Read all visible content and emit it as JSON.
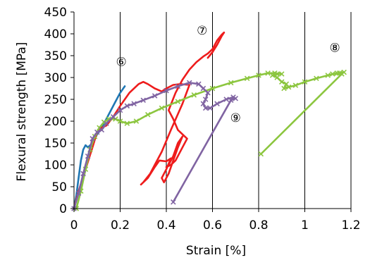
{
  "chart_data": {
    "type": "line",
    "xlabel": "Strain [%]",
    "ylabel": "Flexural strength [MPa]",
    "xlim": [
      0,
      1.2
    ],
    "ylim": [
      0,
      450
    ],
    "x_ticks": [
      0,
      0.2,
      0.4,
      0.6,
      0.8,
      1.0,
      1.2
    ],
    "x_tick_labels": [
      "0",
      "0.2",
      "0.4",
      "0.6",
      "0.8",
      "1",
      "1.2"
    ],
    "y_ticks": [
      0,
      50,
      100,
      150,
      200,
      250,
      300,
      350,
      400,
      450
    ],
    "y_tick_labels": [
      "0",
      "50",
      "100",
      "150",
      "200",
      "250",
      "300",
      "350",
      "400",
      "450"
    ],
    "grid": "vertical",
    "series": [
      {
        "label": "⑥",
        "color": "#1f77b4",
        "marker": "none",
        "points": [
          [
            0.0,
            0
          ],
          [
            0.01,
            30
          ],
          [
            0.02,
            70
          ],
          [
            0.03,
            110
          ],
          [
            0.04,
            135
          ],
          [
            0.05,
            145
          ],
          [
            0.06,
            140
          ],
          [
            0.08,
            150
          ],
          [
            0.1,
            170
          ],
          [
            0.12,
            185
          ],
          [
            0.14,
            205
          ],
          [
            0.16,
            225
          ],
          [
            0.18,
            245
          ],
          [
            0.2,
            265
          ],
          [
            0.22,
            280
          ]
        ]
      },
      {
        "label": "⑦",
        "color": "#ee1c1c",
        "marker": "none",
        "points": [
          [
            0.0,
            0
          ],
          [
            0.02,
            40
          ],
          [
            0.05,
            90
          ],
          [
            0.08,
            140
          ],
          [
            0.1,
            175
          ],
          [
            0.12,
            185
          ],
          [
            0.14,
            190
          ],
          [
            0.17,
            210
          ],
          [
            0.2,
            235
          ],
          [
            0.24,
            265
          ],
          [
            0.28,
            285
          ],
          [
            0.3,
            290
          ],
          [
            0.32,
            285
          ],
          [
            0.35,
            275
          ],
          [
            0.38,
            268
          ],
          [
            0.4,
            275
          ],
          [
            0.43,
            283
          ],
          [
            0.46,
            285
          ],
          [
            0.5,
            283
          ],
          [
            0.47,
            240
          ],
          [
            0.42,
            180
          ],
          [
            0.38,
            130
          ],
          [
            0.35,
            100
          ],
          [
            0.33,
            80
          ],
          [
            0.3,
            60
          ],
          [
            0.29,
            55
          ],
          [
            0.32,
            70
          ],
          [
            0.35,
            95
          ],
          [
            0.37,
            110
          ],
          [
            0.4,
            108
          ],
          [
            0.42,
            115
          ],
          [
            0.4,
            90
          ],
          [
            0.38,
            70
          ],
          [
            0.39,
            60
          ],
          [
            0.41,
            80
          ],
          [
            0.43,
            110
          ],
          [
            0.45,
            140
          ],
          [
            0.47,
            165
          ],
          [
            0.45,
            150
          ],
          [
            0.43,
            120
          ],
          [
            0.41,
            100
          ],
          [
            0.4,
            95
          ],
          [
            0.42,
            100
          ],
          [
            0.44,
            110
          ],
          [
            0.47,
            140
          ],
          [
            0.49,
            160
          ],
          [
            0.45,
            180
          ],
          [
            0.43,
            205
          ],
          [
            0.41,
            225
          ],
          [
            0.44,
            265
          ],
          [
            0.47,
            295
          ],
          [
            0.5,
            318
          ],
          [
            0.53,
            335
          ],
          [
            0.56,
            348
          ],
          [
            0.58,
            355
          ],
          [
            0.6,
            365
          ],
          [
            0.62,
            385
          ],
          [
            0.64,
            398
          ],
          [
            0.65,
            403
          ],
          [
            0.64,
            395
          ],
          [
            0.62,
            375
          ],
          [
            0.6,
            358
          ],
          [
            0.58,
            345
          ]
        ]
      },
      {
        "label": "⑧",
        "color": "#8cc63f",
        "marker": "x",
        "points": [
          [
            0.01,
            0
          ],
          [
            0.03,
            40
          ],
          [
            0.05,
            90
          ],
          [
            0.07,
            135
          ],
          [
            0.09,
            165
          ],
          [
            0.11,
            185
          ],
          [
            0.13,
            198
          ],
          [
            0.15,
            205
          ],
          [
            0.18,
            205
          ],
          [
            0.2,
            200
          ],
          [
            0.23,
            195
          ],
          [
            0.27,
            200
          ],
          [
            0.32,
            215
          ],
          [
            0.38,
            230
          ],
          [
            0.45,
            245
          ],
          [
            0.52,
            260
          ],
          [
            0.6,
            275
          ],
          [
            0.68,
            288
          ],
          [
            0.75,
            298
          ],
          [
            0.8,
            305
          ],
          [
            0.84,
            310
          ],
          [
            0.87,
            310
          ],
          [
            0.9,
            308
          ],
          [
            0.88,
            308
          ],
          [
            0.86,
            305
          ],
          [
            0.88,
            300
          ],
          [
            0.9,
            290
          ],
          [
            0.92,
            285
          ],
          [
            0.91,
            275
          ],
          [
            0.93,
            278
          ],
          [
            0.96,
            282
          ],
          [
            1.0,
            290
          ],
          [
            1.05,
            298
          ],
          [
            1.1,
            305
          ],
          [
            1.14,
            310
          ],
          [
            1.17,
            312
          ],
          [
            1.15,
            310
          ],
          [
            1.12,
            308
          ],
          [
            1.16,
            308
          ],
          [
            0.81,
            125
          ]
        ]
      },
      {
        "label": "⑨",
        "color": "#8064a2",
        "marker": "x",
        "points": [
          [
            0.0,
            0
          ],
          [
            0.02,
            35
          ],
          [
            0.04,
            80
          ],
          [
            0.06,
            120
          ],
          [
            0.08,
            160
          ],
          [
            0.1,
            175
          ],
          [
            0.12,
            180
          ],
          [
            0.14,
            195
          ],
          [
            0.17,
            210
          ],
          [
            0.2,
            225
          ],
          [
            0.23,
            235
          ],
          [
            0.26,
            240
          ],
          [
            0.3,
            248
          ],
          [
            0.35,
            258
          ],
          [
            0.4,
            270
          ],
          [
            0.45,
            280
          ],
          [
            0.5,
            288
          ],
          [
            0.54,
            285
          ],
          [
            0.56,
            275
          ],
          [
            0.58,
            265
          ],
          [
            0.57,
            250
          ],
          [
            0.56,
            240
          ],
          [
            0.57,
            230
          ],
          [
            0.59,
            230
          ],
          [
            0.62,
            240
          ],
          [
            0.66,
            250
          ],
          [
            0.69,
            255
          ],
          [
            0.7,
            252
          ],
          [
            0.68,
            248
          ],
          [
            0.43,
            15
          ]
        ]
      }
    ],
    "annotations": [
      {
        "text": "⑥",
        "x": 0.205,
        "y": 338
      },
      {
        "text": "⑦",
        "x": 0.555,
        "y": 410
      },
      {
        "text": "⑧",
        "x": 1.13,
        "y": 370
      },
      {
        "text": "⑨",
        "x": 0.7,
        "y": 210
      }
    ]
  }
}
